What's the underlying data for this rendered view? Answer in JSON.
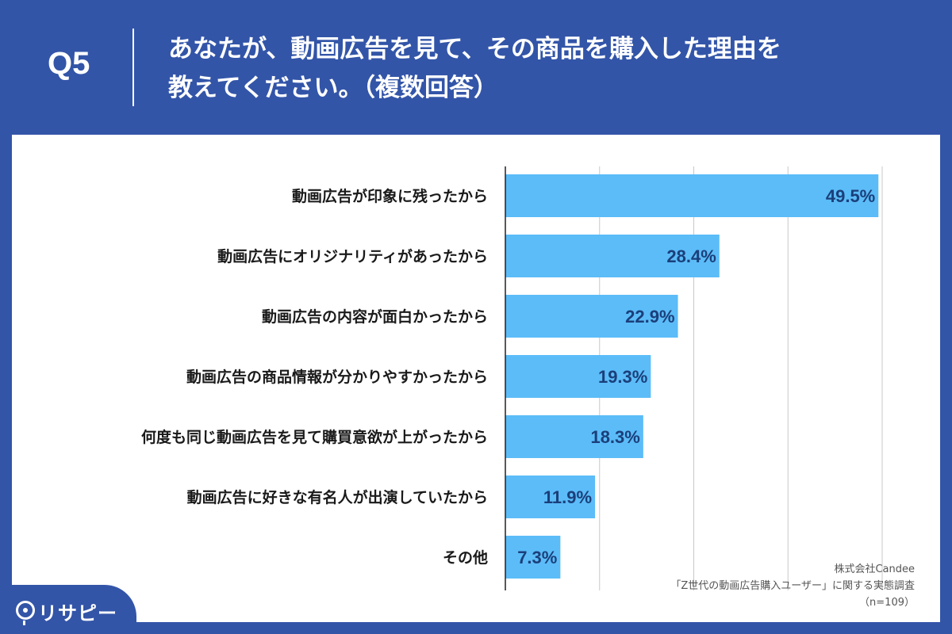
{
  "header": {
    "question_number": "Q5",
    "title_line1": "あなたが、動画広告を見て、その商品を購入した理由を",
    "title_line2": "教えてください。（複数回答）"
  },
  "colors": {
    "background": "#3355a8",
    "bar": "#5bbcf8",
    "value_text": "#1b3f7a",
    "grid": "#c8c8c8"
  },
  "chart_data": {
    "type": "bar",
    "orientation": "horizontal",
    "categories": [
      "動画広告が印象に残ったから",
      "動画広告にオリジナリティがあったから",
      "動画広告の内容が面白かったから",
      "動画広告の商品情報が分かりやすかったから",
      "何度も同じ動画広告を見て購買意欲が上がったから",
      "動画広告に好きな有名人が出演していたから",
      "その他"
    ],
    "values": [
      49.5,
      28.4,
      22.9,
      19.3,
      18.3,
      11.9,
      7.3
    ],
    "value_labels": [
      "49.5%",
      "28.4%",
      "22.9%",
      "19.3%",
      "18.3%",
      "11.9%",
      "7.3%"
    ],
    "xlim": [
      0,
      50
    ],
    "grid": true
  },
  "source": {
    "company": "株式会社Candee",
    "survey": "「Z世代の動画広告購入ユーザー」に関する実態調査",
    "sample": "（n=109）"
  },
  "logo": {
    "text": "リサピー",
    "icon": "pin-icon"
  }
}
